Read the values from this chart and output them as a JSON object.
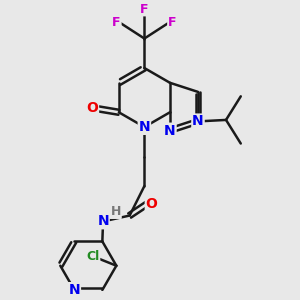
{
  "background_color": "#e8e8e8",
  "bond_color": "#1a1a1a",
  "bond_width": 1.8,
  "atom_colors": {
    "N": "#0000ee",
    "O": "#ee0000",
    "F": "#cc00cc",
    "Cl": "#228b22",
    "H": "#777777",
    "C": "#1a1a1a"
  },
  "font_size": 9,
  "fig_width": 3.0,
  "fig_height": 3.0,
  "dpi": 100
}
